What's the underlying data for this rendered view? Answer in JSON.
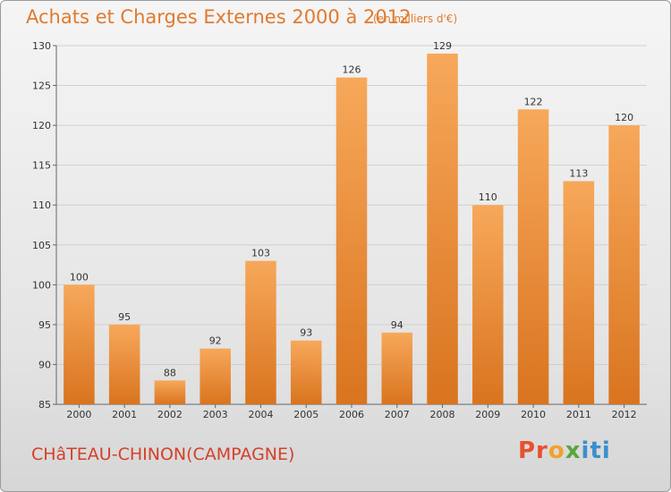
{
  "header": {
    "title": "Achats et Charges Externes 2000 à 2012",
    "subtitle": "(en milliers d'€)"
  },
  "footer": {
    "place": "CHâTEAU-CHINON(CAMPAGNE)",
    "logo": "Proxiti"
  },
  "colors": {
    "bar_top": "#f7a85a",
    "bar_bottom": "#d9741f",
    "grid": "#cfcfcf",
    "title": "#e07a2e"
  },
  "chart_data": {
    "type": "bar",
    "title": "Achats et Charges Externes 2000 à 2012",
    "subtitle": "(en milliers d'€)",
    "categories": [
      "2000",
      "2001",
      "2002",
      "2003",
      "2004",
      "2005",
      "2006",
      "2007",
      "2008",
      "2009",
      "2010",
      "2011",
      "2012"
    ],
    "values": [
      100,
      95,
      88,
      92,
      103,
      93,
      126,
      94,
      129,
      110,
      122,
      113,
      120
    ],
    "ylim": [
      85,
      130
    ],
    "yticks": [
      85,
      90,
      95,
      100,
      105,
      110,
      115,
      120,
      125,
      130
    ],
    "grid": true,
    "xlabel": "",
    "ylabel": ""
  }
}
